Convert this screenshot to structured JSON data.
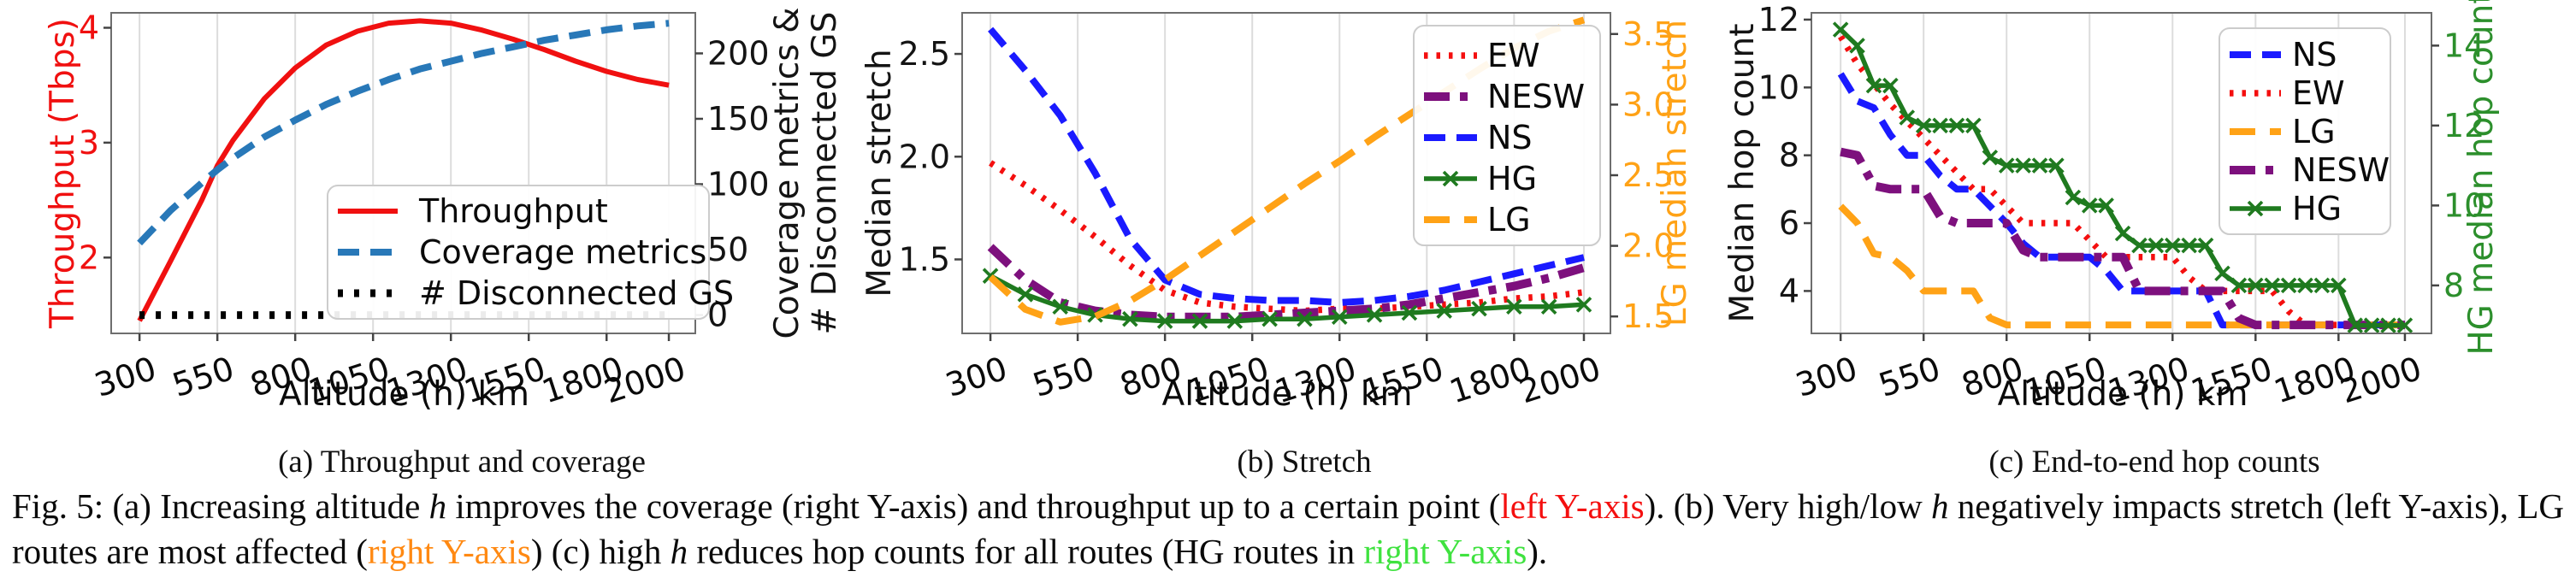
{
  "figure": {
    "subcaptions": {
      "a": "(a) Throughput and coverage",
      "b": "(b) Stretch",
      "c": "(c) End-to-end hop counts"
    },
    "caption_segments": [
      {
        "t": "Fig. 5: (a) Increasing altitude "
      },
      {
        "t": "h",
        "i": true
      },
      {
        "t": " improves the coverage (right Y-axis) and throughput up to a certain point ("
      },
      {
        "t": "left Y-axis",
        "c": "#f40f0f"
      },
      {
        "t": "). (b) Very high/low "
      },
      {
        "t": "h",
        "i": true
      },
      {
        "t": " negatively impacts stretch (left Y-axis), LG routes are most affected ("
      },
      {
        "t": "right Y-axis",
        "c": "#ff8912"
      },
      {
        "t": ") (c) high "
      },
      {
        "t": "h",
        "i": true
      },
      {
        "t": " reduces hop counts for all routes (HG routes in "
      },
      {
        "t": "right Y-axis",
        "c": "#3fe23f"
      },
      {
        "t": ")."
      }
    ]
  },
  "chart_data": [
    {
      "id": "a",
      "type": "line",
      "xlabel": "Altitude (h) km",
      "x_ticks": [
        300,
        550,
        800,
        1050,
        1300,
        1550,
        1800,
        2000
      ],
      "x_tick_labels": [
        "300",
        "550",
        "800",
        "1050",
        "1300",
        "1550",
        "1800",
        "2000"
      ],
      "xlim": [
        209,
        2085
      ],
      "grid": true,
      "left_axis": {
        "label": "Throughput (Tbps)",
        "color": "#f01010",
        "ticks": [
          2,
          3,
          4
        ],
        "tick_labels": [
          "2",
          "3",
          "4"
        ],
        "lim": [
          1.34,
          4.13
        ]
      },
      "right_axis": {
        "label": "Coverage metrics &\n# Disconnected GS",
        "color": "#141414",
        "ticks": [
          0,
          50,
          100,
          150,
          200
        ],
        "tick_labels": [
          "0",
          "50",
          "100",
          "150",
          "200"
        ],
        "lim": [
          -14,
          231
        ]
      },
      "legend": {
        "entries": [
          "Throughput",
          "Coverage metrics",
          "# Disconnected GS"
        ],
        "position": "lower right"
      },
      "series": [
        {
          "name": "Throughput",
          "axis": "left",
          "color": "#f01010",
          "dash": "solid",
          "width": 6,
          "marker": null,
          "x": [
            300,
            400,
            500,
            550,
            600,
            700,
            800,
            900,
            1000,
            1100,
            1200,
            1300,
            1400,
            1500,
            1600,
            1700,
            1800,
            1900,
            2000
          ],
          "y": [
            1.45,
            1.97,
            2.5,
            2.8,
            3.02,
            3.38,
            3.65,
            3.85,
            3.97,
            4.04,
            4.06,
            4.04,
            3.98,
            3.9,
            3.81,
            3.71,
            3.62,
            3.55,
            3.5
          ]
        },
        {
          "name": "Coverage metrics",
          "axis": "right",
          "color": "#2878b8",
          "dash": "dashed",
          "width": 8,
          "marker": null,
          "x": [
            300,
            400,
            500,
            550,
            600,
            700,
            800,
            900,
            1000,
            1100,
            1200,
            1300,
            1400,
            1500,
            1600,
            1700,
            1800,
            1900,
            2000
          ],
          "y": [
            55,
            80,
            101,
            111,
            120,
            136,
            149,
            161,
            171,
            180,
            188,
            194,
            200,
            205,
            210,
            214,
            218,
            221,
            223
          ]
        },
        {
          "name": "# Disconnected GS",
          "axis": "right",
          "color": "#000000",
          "dash": "dotbig",
          "width": 9,
          "marker": null,
          "x": [
            300,
            2000
          ],
          "y": [
            0,
            0
          ]
        }
      ]
    },
    {
      "id": "b",
      "type": "line",
      "xlabel": "Altitude (h) km",
      "x_ticks": [
        300,
        550,
        800,
        1050,
        1300,
        1550,
        1800,
        2000
      ],
      "x_tick_labels": [
        "300",
        "550",
        "800",
        "1050",
        "1300",
        "1550",
        "1800",
        "2000"
      ],
      "xlim": [
        219,
        2076
      ],
      "grid": true,
      "left_axis": {
        "label": "Median stretch",
        "color": "#141414",
        "ticks": [
          1.5,
          2.0,
          2.5
        ],
        "tick_labels": [
          "1.5",
          "2.0",
          "2.5"
        ],
        "lim": [
          1.14,
          2.7
        ]
      },
      "right_axis": {
        "label": "LG median stretch",
        "color": "#ffa216",
        "ticks": [
          1.5,
          2.0,
          2.5,
          3.0,
          3.5
        ],
        "tick_labels": [
          "1.5",
          "2.0",
          "2.5",
          "3.0",
          "3.5"
        ],
        "lim": [
          1.38,
          3.65
        ]
      },
      "legend": {
        "entries": [
          "EW",
          "NESW",
          "NS",
          "HG",
          "LG"
        ],
        "position": "upper right"
      },
      "series": [
        {
          "name": "EW",
          "axis": "left",
          "color": "#f40f0f",
          "dash": "dotted",
          "width": 7.5,
          "marker": null,
          "x": [
            300,
            400,
            500,
            600,
            700,
            800,
            900,
            1000,
            1100,
            1200,
            1300,
            1400,
            1500,
            1600,
            1700,
            1800,
            1900,
            2000
          ],
          "y": [
            1.97,
            1.86,
            1.74,
            1.61,
            1.47,
            1.35,
            1.29,
            1.27,
            1.26,
            1.25,
            1.26,
            1.26,
            1.27,
            1.28,
            1.29,
            1.31,
            1.32,
            1.34
          ]
        },
        {
          "name": "NESW",
          "axis": "left",
          "color": "#7d107d",
          "dash": "dashdot",
          "width": 10,
          "marker": null,
          "x": [
            300,
            400,
            500,
            600,
            700,
            800,
            900,
            1000,
            1100,
            1200,
            1300,
            1400,
            1500,
            1600,
            1700,
            1800,
            1900,
            2000
          ],
          "y": [
            1.56,
            1.4,
            1.29,
            1.25,
            1.23,
            1.22,
            1.22,
            1.22,
            1.23,
            1.24,
            1.25,
            1.26,
            1.28,
            1.31,
            1.34,
            1.37,
            1.41,
            1.46
          ]
        },
        {
          "name": "NS",
          "axis": "left",
          "color": "#1a1aff",
          "dash": "dashed",
          "width": 8,
          "marker": null,
          "x": [
            300,
            400,
            500,
            600,
            700,
            800,
            900,
            1000,
            1100,
            1200,
            1300,
            1400,
            1500,
            1600,
            1700,
            1800,
            1900,
            2000
          ],
          "y": [
            2.62,
            2.42,
            2.2,
            1.92,
            1.6,
            1.4,
            1.33,
            1.31,
            1.3,
            1.3,
            1.29,
            1.3,
            1.32,
            1.35,
            1.39,
            1.43,
            1.47,
            1.51
          ]
        },
        {
          "name": "HG",
          "axis": "left",
          "color": "#1f7a1f",
          "dash": "solid",
          "width": 5.5,
          "marker": "x",
          "x": [
            300,
            400,
            500,
            600,
            700,
            800,
            900,
            1000,
            1100,
            1200,
            1300,
            1400,
            1500,
            1600,
            1700,
            1800,
            1900,
            2000
          ],
          "y": [
            1.42,
            1.33,
            1.27,
            1.23,
            1.21,
            1.2,
            1.2,
            1.2,
            1.21,
            1.21,
            1.22,
            1.23,
            1.24,
            1.25,
            1.26,
            1.27,
            1.27,
            1.28
          ]
        },
        {
          "name": "LG",
          "axis": "right",
          "color": "#ffa216",
          "dash": "dashlg",
          "width": 8,
          "marker": null,
          "x": [
            300,
            400,
            500,
            600,
            700,
            800,
            900,
            1000,
            1100,
            1200,
            1300,
            1400,
            1500,
            1600,
            1700,
            1800,
            1900,
            2000
          ],
          "y": [
            1.78,
            1.55,
            1.46,
            1.5,
            1.61,
            1.76,
            1.93,
            2.1,
            2.27,
            2.44,
            2.6,
            2.77,
            2.93,
            3.09,
            3.25,
            3.4,
            3.52,
            3.6
          ]
        }
      ]
    },
    {
      "id": "c",
      "type": "line",
      "xlabel": "Altitude (h) km",
      "x_ticks": [
        300,
        550,
        800,
        1050,
        1300,
        1550,
        1800,
        2000
      ],
      "x_tick_labels": [
        "300",
        "550",
        "800",
        "1050",
        "1300",
        "1550",
        "1800",
        "2000"
      ],
      "xlim": [
        212,
        2080
      ],
      "grid": true,
      "left_axis": {
        "label": "Median hop count",
        "color": "#141414",
        "ticks": [
          4,
          6,
          8,
          10,
          12
        ],
        "tick_labels": [
          "4",
          "6",
          "8",
          "10",
          "12"
        ],
        "lim": [
          2.75,
          12.2
        ]
      },
      "right_axis": {
        "label": "HG median hop count",
        "color": "#2c8f2c",
        "ticks": [
          8,
          10,
          12,
          14
        ],
        "tick_labels": [
          "8",
          "10",
          "12",
          "14"
        ],
        "lim": [
          6.8,
          14.82
        ]
      },
      "legend": {
        "entries": [
          "NS",
          "EW",
          "LG",
          "NESW",
          "HG"
        ],
        "position": "upper right"
      },
      "series": [
        {
          "name": "NS",
          "axis": "left",
          "color": "#1a1aff",
          "dash": "dashed",
          "width": 8,
          "marker": null,
          "x": [
            300,
            350,
            400,
            450,
            500,
            550,
            600,
            650,
            700,
            750,
            800,
            850,
            900,
            950,
            1000,
            1050,
            1100,
            1150,
            1200,
            1250,
            1300,
            1350,
            1400,
            1450,
            1500,
            1550,
            1600,
            1650,
            1700,
            1750,
            1800,
            1850,
            1900,
            1950,
            2000
          ],
          "y": [
            10.4,
            9.6,
            9.4,
            8.6,
            8,
            8,
            7.4,
            7,
            7,
            6.5,
            6,
            5.4,
            5,
            5,
            5,
            5,
            4.6,
            4,
            4,
            4,
            4,
            4,
            4,
            3,
            3,
            3,
            3,
            3,
            3,
            3,
            3,
            3,
            3,
            3,
            3
          ]
        },
        {
          "name": "EW",
          "axis": "left",
          "color": "#f40f0f",
          "dash": "dotted",
          "width": 7.5,
          "marker": null,
          "x": [
            300,
            350,
            400,
            450,
            500,
            550,
            600,
            650,
            700,
            750,
            800,
            850,
            900,
            950,
            1000,
            1050,
            1100,
            1150,
            1200,
            1250,
            1300,
            1350,
            1400,
            1450,
            1500,
            1550,
            1600,
            1650,
            1700,
            1750,
            1800,
            1850,
            1900,
            1950,
            2000
          ],
          "y": [
            11.5,
            10.7,
            10.1,
            9.5,
            9,
            8.5,
            8,
            7.5,
            7,
            7,
            6.5,
            6,
            6,
            6,
            6,
            5.5,
            5,
            5,
            5,
            5,
            5,
            4.4,
            4,
            4,
            4,
            4,
            4,
            3.4,
            3,
            3,
            3,
            3,
            3,
            3,
            3
          ]
        },
        {
          "name": "LG",
          "axis": "left",
          "color": "#ffa216",
          "dash": "dashlg",
          "width": 8,
          "marker": null,
          "x": [
            300,
            350,
            400,
            450,
            500,
            550,
            600,
            650,
            700,
            750,
            800,
            850,
            900,
            950,
            1000,
            1050,
            1100,
            1150,
            1200,
            1250,
            1300,
            1350,
            1400,
            1450,
            1500,
            1550,
            1600,
            1650,
            1700,
            1750,
            1800,
            1850,
            1900,
            1950,
            2000
          ],
          "y": [
            6.5,
            6,
            5.1,
            5,
            4.6,
            4,
            4,
            4,
            4,
            3.2,
            3,
            3,
            3,
            3,
            3,
            3,
            3,
            3,
            3,
            3,
            3,
            3,
            3,
            3,
            3,
            3,
            3,
            3,
            3,
            3,
            3,
            3,
            3,
            3,
            3
          ]
        },
        {
          "name": "NESW",
          "axis": "left",
          "color": "#7d107d",
          "dash": "dashdot",
          "width": 10,
          "marker": null,
          "x": [
            300,
            350,
            400,
            450,
            500,
            550,
            600,
            650,
            700,
            750,
            800,
            850,
            900,
            950,
            1000,
            1050,
            1100,
            1150,
            1200,
            1250,
            1300,
            1350,
            1400,
            1450,
            1500,
            1550,
            1600,
            1650,
            1700,
            1750,
            1800,
            1850,
            1900,
            1950,
            2000
          ],
          "y": [
            8.1,
            8,
            7.1,
            7,
            7,
            7,
            6.2,
            6,
            6,
            6,
            6,
            5.2,
            5,
            5,
            5,
            5,
            5,
            5,
            4,
            4,
            4,
            4,
            4,
            4,
            3.2,
            3,
            3,
            3,
            3,
            3,
            3,
            3,
            3,
            3,
            3
          ]
        },
        {
          "name": "HG",
          "axis": "right",
          "color": "#1f7a1f",
          "dash": "solid",
          "width": 5.5,
          "marker": "x",
          "x": [
            300,
            350,
            400,
            450,
            500,
            550,
            600,
            650,
            700,
            750,
            800,
            850,
            900,
            950,
            1000,
            1050,
            1100,
            1150,
            1200,
            1250,
            1300,
            1350,
            1400,
            1450,
            1500,
            1550,
            1600,
            1650,
            1700,
            1750,
            1800,
            1850,
            1900,
            1950,
            2000
          ],
          "y": [
            14.4,
            14,
            13,
            13,
            12.2,
            12,
            12,
            12,
            12,
            11.2,
            11,
            11,
            11,
            11,
            10.2,
            10,
            10,
            9.3,
            9,
            9,
            9,
            9,
            9,
            8.3,
            8,
            8,
            8,
            8,
            8,
            8,
            8,
            7,
            7,
            7,
            7
          ]
        }
      ]
    }
  ]
}
